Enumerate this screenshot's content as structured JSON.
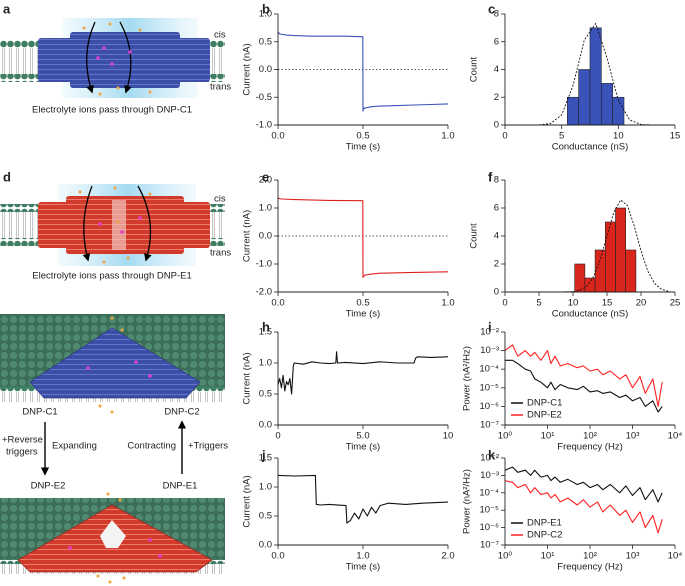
{
  "panel_labels": [
    "a",
    "b",
    "c",
    "d",
    "e",
    "f",
    "g",
    "h",
    "i",
    "j",
    "k"
  ],
  "diagrams": {
    "a": {
      "side_top": "cis",
      "side_bottom": "trans",
      "caption": "Electrolyte ions pass through DNP-C1"
    },
    "d": {
      "side_top": "cis",
      "side_bottom": "trans",
      "caption": "Electrolyte ions pass through DNP-E1"
    },
    "g": {
      "top_left": "DNP-C1",
      "top_right": "DNP-C2",
      "left_action": [
        "+Reverse",
        "triggers"
      ],
      "left_process": "Expanding",
      "right_process": "Contracting",
      "right_action": "+Triggers",
      "bottom_left": "DNP-E2",
      "bottom_right": "DNP-E1"
    }
  },
  "chart_data": [
    {
      "type": "line",
      "xlabel": "Time (s)",
      "ylabel": "Current (nA)",
      "xlim": [
        0,
        1
      ],
      "ylim": [
        -1,
        1
      ],
      "xticks": [
        {
          "value": 0,
          "label": "0.0"
        },
        {
          "value": 0.5,
          "label": "0.5"
        },
        {
          "value": 1,
          "label": "1.0"
        }
      ],
      "yticks": [
        {
          "value": -1,
          "label": "-1.0"
        },
        {
          "value": -0.5,
          "label": "-0.5"
        },
        {
          "value": 0,
          "label": "0.0"
        },
        {
          "value": 0.5,
          "label": "0.5"
        },
        {
          "value": 1,
          "label": "1.0"
        }
      ],
      "hline": 0,
      "series": [
        {
          "color": "#3a53b8",
          "x": [
            0,
            0.01,
            0.05,
            0.1,
            0.2,
            0.3,
            0.4,
            0.499,
            0.5,
            0.505,
            0.55,
            0.6,
            0.7,
            0.8,
            0.9,
            1.0
          ],
          "values": [
            0.68,
            0.64,
            0.62,
            0.61,
            0.6,
            0.6,
            0.6,
            0.59,
            -0.75,
            -0.7,
            -0.67,
            -0.66,
            -0.65,
            -0.64,
            -0.63,
            -0.62
          ]
        }
      ]
    },
    {
      "type": "histogram",
      "xlabel": "Conductance (nS)",
      "ylabel": "Count",
      "xlim": [
        0,
        15
      ],
      "ylim": [
        0,
        8
      ],
      "xticks": [
        0,
        5,
        10,
        15
      ],
      "yticks": [
        0,
        2,
        4,
        6,
        8
      ],
      "color": "#3a53b8",
      "bins": [
        5.5,
        6.5,
        7.5,
        8.5,
        9.5,
        10.5
      ],
      "counts": [
        2,
        4,
        7,
        3,
        2
      ],
      "fit": {
        "x": [
          3,
          4,
          5,
          6,
          7,
          8,
          9,
          10,
          11,
          12,
          13
        ],
        "values": [
          0.008,
          0.1,
          0.73,
          2.83,
          6.12,
          7.31,
          4.83,
          1.77,
          0.36,
          0.04,
          0
        ]
      }
    },
    {
      "type": "line",
      "xlabel": "Time (s)",
      "ylabel": "Current (nA)",
      "xlim": [
        0,
        1
      ],
      "ylim": [
        -2,
        2
      ],
      "xticks": [
        {
          "value": 0,
          "label": "0.0"
        },
        {
          "value": 0.5,
          "label": "0.5"
        },
        {
          "value": 1,
          "label": "1.0"
        }
      ],
      "yticks": [
        {
          "value": -2,
          "label": "-2.0"
        },
        {
          "value": -1,
          "label": "-1.0"
        },
        {
          "value": 0,
          "label": "0.0"
        },
        {
          "value": 1,
          "label": "1.0"
        },
        {
          "value": 2,
          "label": "2.0"
        }
      ],
      "hline": 0,
      "series": [
        {
          "color": "#e02020",
          "x": [
            0,
            0.02,
            0.1,
            0.3,
            0.499,
            0.5,
            0.51,
            0.55,
            0.6,
            0.8,
            1.0
          ],
          "values": [
            1.35,
            1.32,
            1.3,
            1.27,
            1.26,
            -1.48,
            -1.4,
            -1.36,
            -1.33,
            -1.3,
            -1.28
          ]
        }
      ]
    },
    {
      "type": "histogram",
      "xlabel": "Conductance (nS)",
      "ylabel": "Count",
      "xlim": [
        0,
        25
      ],
      "ylim": [
        0,
        8
      ],
      "xticks": [
        0,
        5,
        10,
        15,
        20,
        25
      ],
      "yticks": [
        0,
        2,
        4,
        6,
        8
      ],
      "color": "#d9261c",
      "bins": [
        10.25,
        11.75,
        13.25,
        14.75,
        16.25,
        17.75,
        19.25
      ],
      "counts": [
        2,
        1,
        3,
        5,
        6,
        3
      ],
      "fit": {
        "x": [
          8,
          10,
          11,
          12,
          13,
          14,
          15,
          16,
          17,
          18,
          19,
          20,
          21,
          22,
          23,
          24
        ],
        "values": [
          0,
          0.03,
          0.12,
          0.4,
          1.07,
          2.29,
          4.0,
          5.69,
          6.57,
          6.18,
          4.72,
          2.94,
          1.49,
          0.61,
          0.2,
          0.06
        ]
      }
    },
    {
      "type": "line",
      "xlabel": "Time (s)",
      "ylabel": "Current (nA)",
      "xlim": [
        0,
        10
      ],
      "ylim": [
        0,
        1.5
      ],
      "xticks": [
        0,
        {
          "value": 5,
          "label": "5.0"
        },
        10
      ],
      "yticks": [
        {
          "value": 0,
          "label": "0.0"
        },
        {
          "value": 0.5,
          "label": "0.5"
        },
        {
          "value": 1,
          "label": "1.0"
        },
        {
          "value": 1.5,
          "label": "1.5"
        }
      ],
      "series": [
        {
          "color": "#111111",
          "x": [
            0,
            0.1,
            0.2,
            0.3,
            0.4,
            0.5,
            0.6,
            0.7,
            0.8,
            0.9,
            0.95,
            1.5,
            2,
            2.5,
            3,
            3.4,
            3.45,
            3.5,
            4,
            5,
            6,
            7,
            8,
            8.1,
            8.2,
            9,
            10
          ],
          "values": [
            0.65,
            0.75,
            0.6,
            0.8,
            0.55,
            0.7,
            0.65,
            0.75,
            0.5,
            0.95,
            1.0,
            0.98,
            1.02,
            1.0,
            0.99,
            1.0,
            1.18,
            1.0,
            1.01,
            0.99,
            1.02,
            1.0,
            1.0,
            1.08,
            1.1,
            1.09,
            1.1
          ]
        }
      ]
    },
    {
      "type": "line",
      "xlabel": "Frequency (Hz)",
      "ylabel": "Power (nA²/Hz)",
      "log_x": true,
      "log_y": true,
      "xlim": [
        1,
        10000
      ],
      "ylim": [
        1e-07,
        0.01
      ],
      "xticks": [
        {
          "value": 1,
          "label": "10⁰"
        },
        {
          "value": 10,
          "label": "10¹"
        },
        {
          "value": 100,
          "label": "10²"
        },
        {
          "value": 1000,
          "label": "10³"
        },
        {
          "value": 10000,
          "label": "10⁴"
        }
      ],
      "yticks": [
        {
          "value": 1e-07,
          "label": "10⁻⁷"
        },
        {
          "value": 1e-06,
          "label": "10⁻⁶"
        },
        {
          "value": 1e-05,
          "label": "10⁻⁵"
        },
        {
          "value": 0.0001,
          "label": "10⁻⁴"
        },
        {
          "value": 0.001,
          "label": "10⁻³"
        },
        {
          "value": 0.01,
          "label": "10⁻²"
        }
      ],
      "legend": "lower left",
      "series": [
        {
          "name": "DNP-C1",
          "color": "#111111",
          "x": [
            1,
            1.5,
            2,
            3,
            4,
            5,
            7,
            10,
            12,
            15,
            20,
            30,
            50,
            70,
            100,
            150,
            200,
            300,
            500,
            700,
            1000,
            1500,
            2000,
            3000,
            4000,
            5000
          ],
          "values": [
            0.0003,
            0.0003,
            0.0002,
            0.0001,
            8e-05,
            3e-05,
            2e-05,
            1e-05,
            2e-05,
            8e-06,
            1.5e-05,
            1e-05,
            8e-06,
            1.2e-05,
            6e-06,
            7e-06,
            5e-06,
            6e-06,
            3e-06,
            4e-06,
            2e-06,
            3e-06,
            1e-06,
            2e-06,
            5e-07,
            1e-06
          ]
        },
        {
          "name": "DNP-E2",
          "color": "#ff2020",
          "x": [
            1,
            1.5,
            2,
            3,
            4,
            5,
            7,
            10,
            12,
            15,
            20,
            30,
            50,
            70,
            100,
            150,
            200,
            300,
            500,
            700,
            1000,
            1500,
            2000,
            3000,
            4000,
            5000
          ],
          "values": [
            0.001,
            0.002,
            0.0005,
            0.001,
            0.0005,
            0.0008,
            0.0003,
            0.001,
            0.0002,
            0.0005,
            0.00015,
            0.0002,
            0.00012,
            0.00015,
            8e-05,
            0.0001,
            5e-05,
            8e-05,
            3e-05,
            5e-05,
            1e-05,
            4e-05,
            5e-06,
            3e-05,
            1e-06,
            2e-05
          ]
        }
      ]
    },
    {
      "type": "line",
      "xlabel": "Time (s)",
      "ylabel": "Current (nA)",
      "xlim": [
        0,
        2
      ],
      "ylim": [
        0,
        1.5
      ],
      "xticks": [
        {
          "value": 0,
          "label": "0.0"
        },
        {
          "value": 1,
          "label": "1.0"
        },
        {
          "value": 2,
          "label": "2.0"
        }
      ],
      "yticks": [
        {
          "value": 0,
          "label": "0.0"
        },
        {
          "value": 0.5,
          "label": "0.5"
        },
        {
          "value": 1,
          "label": "1.0"
        },
        {
          "value": 1.5,
          "label": "1.5"
        }
      ],
      "series": [
        {
          "color": "#111111",
          "x": [
            0,
            0.2,
            0.44,
            0.45,
            0.5,
            0.6,
            0.8,
            0.81,
            0.85,
            0.9,
            0.95,
            1.0,
            1.05,
            1.1,
            1.15,
            1.2,
            1.25,
            1.3,
            1.5,
            1.7,
            2.0
          ],
          "values": [
            1.2,
            1.19,
            1.2,
            0.7,
            0.69,
            0.7,
            0.68,
            0.38,
            0.42,
            0.55,
            0.45,
            0.62,
            0.5,
            0.65,
            0.55,
            0.68,
            0.7,
            0.72,
            0.7,
            0.72,
            0.74
          ]
        }
      ]
    },
    {
      "type": "line",
      "xlabel": "Frequency (Hz)",
      "ylabel": "Power (nA²/Hz)",
      "log_x": true,
      "log_y": true,
      "xlim": [
        1,
        10000
      ],
      "ylim": [
        1e-07,
        0.01
      ],
      "xticks": [
        {
          "value": 1,
          "label": "10⁰"
        },
        {
          "value": 10,
          "label": "10¹"
        },
        {
          "value": 100,
          "label": "10²"
        },
        {
          "value": 1000,
          "label": "10³"
        },
        {
          "value": 10000,
          "label": "10⁴"
        }
      ],
      "yticks": [
        {
          "value": 1e-07,
          "label": "10⁻⁷"
        },
        {
          "value": 1e-06,
          "label": "10⁻⁶"
        },
        {
          "value": 1e-05,
          "label": "10⁻⁵"
        },
        {
          "value": 0.0001,
          "label": "10⁻⁴"
        },
        {
          "value": 0.001,
          "label": "10⁻³"
        },
        {
          "value": 0.01,
          "label": "10⁻²"
        }
      ],
      "legend": "lower left",
      "series": [
        {
          "name": "DNP-E1",
          "color": "#111111",
          "x": [
            1,
            1.5,
            2,
            3,
            4,
            5,
            7,
            10,
            12,
            15,
            20,
            30,
            50,
            70,
            100,
            150,
            200,
            300,
            500,
            700,
            1000,
            1500,
            2000,
            3000,
            4000,
            5000
          ],
          "values": [
            0.002,
            0.003,
            0.0015,
            0.002,
            0.001,
            0.002,
            0.0008,
            0.001,
            0.0005,
            0.0008,
            0.0004,
            0.0006,
            0.0003,
            0.0004,
            0.0002,
            0.0003,
            0.00015,
            0.0003,
            0.0001,
            0.00025,
            7e-05,
            0.0002,
            4e-05,
            0.00015,
            3e-05,
            0.0001
          ]
        },
        {
          "name": "DNP-C2",
          "color": "#ff2020",
          "x": [
            1,
            1.5,
            2,
            3,
            4,
            5,
            7,
            10,
            12,
            15,
            20,
            30,
            50,
            70,
            100,
            150,
            200,
            300,
            500,
            700,
            1000,
            1500,
            2000,
            3000,
            4000,
            5000
          ],
          "values": [
            0.0005,
            0.0004,
            0.0002,
            0.0003,
            0.0001,
            0.0002,
            8e-05,
            0.0001,
            5e-05,
            8e-05,
            3e-05,
            5e-05,
            2e-05,
            4e-05,
            1.5e-05,
            3e-05,
            8e-06,
            2e-05,
            5e-06,
            1e-05,
            2e-06,
            8e-06,
            1e-06,
            5e-06,
            5e-07,
            3e-06
          ]
        }
      ]
    }
  ]
}
